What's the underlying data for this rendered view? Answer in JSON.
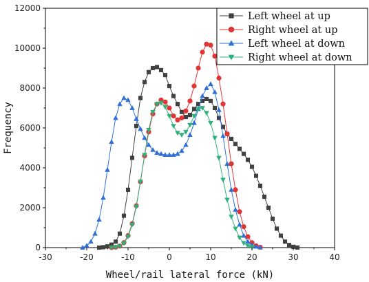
{
  "chart_data": {
    "type": "line",
    "title": "",
    "xlabel": "Wheel/rail lateral force (kN)",
    "ylabel": "Frequency",
    "xlim": [
      -30,
      40
    ],
    "ylim": [
      0,
      12000
    ],
    "x_ticks": [
      "-30",
      "-20",
      "-10",
      "0",
      "10",
      "20",
      "30",
      "40"
    ],
    "y_ticks": [
      "0",
      "2000",
      "4000",
      "6000",
      "8000",
      "10000",
      "12000"
    ],
    "legend_position": "top-right",
    "grid": false,
    "series": [
      {
        "name": "Left wheel at up",
        "color": "#404040",
        "marker": "square",
        "points": [
          [
            -17,
            0
          ],
          [
            -16,
            20
          ],
          [
            -15,
            60
          ],
          [
            -14,
            150
          ],
          [
            -13,
            300
          ],
          [
            -12,
            700
          ],
          [
            -11,
            1600
          ],
          [
            -10,
            2900
          ],
          [
            -9,
            4500
          ],
          [
            -8,
            6100
          ],
          [
            -7,
            7500
          ],
          [
            -6,
            8300
          ],
          [
            -5,
            8800
          ],
          [
            -4,
            9000
          ],
          [
            -3,
            9050
          ],
          [
            -2,
            8900
          ],
          [
            -1,
            8650
          ],
          [
            0,
            8100
          ],
          [
            1,
            7600
          ],
          [
            2,
            7200
          ],
          [
            3,
            6800
          ],
          [
            4,
            6550
          ],
          [
            5,
            6650
          ],
          [
            6,
            6950
          ],
          [
            7,
            7200
          ],
          [
            8,
            7350
          ],
          [
            9,
            7450
          ],
          [
            10,
            7350
          ],
          [
            11,
            7000
          ],
          [
            12,
            6500
          ],
          [
            13,
            6050
          ],
          [
            14,
            5700
          ],
          [
            15,
            5450
          ],
          [
            16,
            5200
          ],
          [
            17,
            4950
          ],
          [
            18,
            4700
          ],
          [
            19,
            4400
          ],
          [
            20,
            4050
          ],
          [
            21,
            3600
          ],
          [
            22,
            3100
          ],
          [
            23,
            2550
          ],
          [
            24,
            2000
          ],
          [
            25,
            1450
          ],
          [
            26,
            950
          ],
          [
            27,
            600
          ],
          [
            28,
            300
          ],
          [
            29,
            130
          ],
          [
            30,
            40
          ],
          [
            31,
            5
          ]
        ]
      },
      {
        "name": "Right wheel at up",
        "color": "#e03535",
        "marker": "circle",
        "points": [
          [
            -14,
            0
          ],
          [
            -13,
            20
          ],
          [
            -12,
            80
          ],
          [
            -11,
            250
          ],
          [
            -10,
            600
          ],
          [
            -9,
            1200
          ],
          [
            -8,
            2100
          ],
          [
            -7,
            3300
          ],
          [
            -6,
            4600
          ],
          [
            -5,
            5800
          ],
          [
            -4,
            6700
          ],
          [
            -3,
            7200
          ],
          [
            -2,
            7400
          ],
          [
            -1,
            7300
          ],
          [
            0,
            7000
          ],
          [
            1,
            6600
          ],
          [
            2,
            6400
          ],
          [
            3,
            6500
          ],
          [
            4,
            6850
          ],
          [
            5,
            7350
          ],
          [
            6,
            8100
          ],
          [
            7,
            9000
          ],
          [
            8,
            9800
          ],
          [
            9,
            10200
          ],
          [
            10,
            10150
          ],
          [
            11,
            9600
          ],
          [
            12,
            8500
          ],
          [
            13,
            7200
          ],
          [
            14,
            5700
          ],
          [
            15,
            4200
          ],
          [
            16,
            2900
          ],
          [
            17,
            1800
          ],
          [
            18,
            1050
          ],
          [
            19,
            550
          ],
          [
            20,
            250
          ],
          [
            21,
            90
          ],
          [
            22,
            20
          ]
        ]
      },
      {
        "name": "Left wheel at down",
        "color": "#2f6fd6",
        "marker": "triangle-up",
        "points": [
          [
            -21,
            0
          ],
          [
            -20,
            100
          ],
          [
            -19,
            300
          ],
          [
            -18,
            700
          ],
          [
            -17,
            1400
          ],
          [
            -16,
            2500
          ],
          [
            -15,
            3900
          ],
          [
            -14,
            5300
          ],
          [
            -13,
            6500
          ],
          [
            -12,
            7200
          ],
          [
            -11,
            7500
          ],
          [
            -10,
            7400
          ],
          [
            -9,
            7000
          ],
          [
            -8,
            6450
          ],
          [
            -7,
            5950
          ],
          [
            -6,
            5500
          ],
          [
            -5,
            5150
          ],
          [
            -4,
            4900
          ],
          [
            -3,
            4750
          ],
          [
            -2,
            4700
          ],
          [
            -1,
            4650
          ],
          [
            0,
            4650
          ],
          [
            1,
            4650
          ],
          [
            2,
            4700
          ],
          [
            3,
            4850
          ],
          [
            4,
            5150
          ],
          [
            5,
            5650
          ],
          [
            6,
            6250
          ],
          [
            7,
            6950
          ],
          [
            8,
            7600
          ],
          [
            9,
            8000
          ],
          [
            10,
            8200
          ],
          [
            11,
            7800
          ],
          [
            12,
            6900
          ],
          [
            13,
            5600
          ],
          [
            14,
            4200
          ],
          [
            15,
            2900
          ],
          [
            16,
            1900
          ],
          [
            17,
            1150
          ],
          [
            18,
            600
          ],
          [
            19,
            300
          ],
          [
            20,
            130
          ],
          [
            21,
            50
          ],
          [
            22,
            10
          ]
        ]
      },
      {
        "name": "Right wheel at down",
        "color": "#2fb07a",
        "marker": "triangle-down",
        "points": [
          [
            -14,
            0
          ],
          [
            -13,
            20
          ],
          [
            -12,
            70
          ],
          [
            -11,
            220
          ],
          [
            -10,
            550
          ],
          [
            -9,
            1150
          ],
          [
            -8,
            2050
          ],
          [
            -7,
            3300
          ],
          [
            -6,
            4650
          ],
          [
            -5,
            5900
          ],
          [
            -4,
            6800
          ],
          [
            -3,
            7200
          ],
          [
            -2,
            7250
          ],
          [
            -1,
            7050
          ],
          [
            0,
            6600
          ],
          [
            1,
            6100
          ],
          [
            2,
            5750
          ],
          [
            3,
            5650
          ],
          [
            4,
            5800
          ],
          [
            5,
            6150
          ],
          [
            6,
            6600
          ],
          [
            7,
            6950
          ],
          [
            8,
            7000
          ],
          [
            9,
            6750
          ],
          [
            10,
            6250
          ],
          [
            11,
            5500
          ],
          [
            12,
            4500
          ],
          [
            13,
            3400
          ],
          [
            14,
            2400
          ],
          [
            15,
            1550
          ],
          [
            16,
            950
          ],
          [
            17,
            500
          ],
          [
            18,
            230
          ],
          [
            19,
            90
          ],
          [
            20,
            20
          ]
        ]
      }
    ]
  }
}
